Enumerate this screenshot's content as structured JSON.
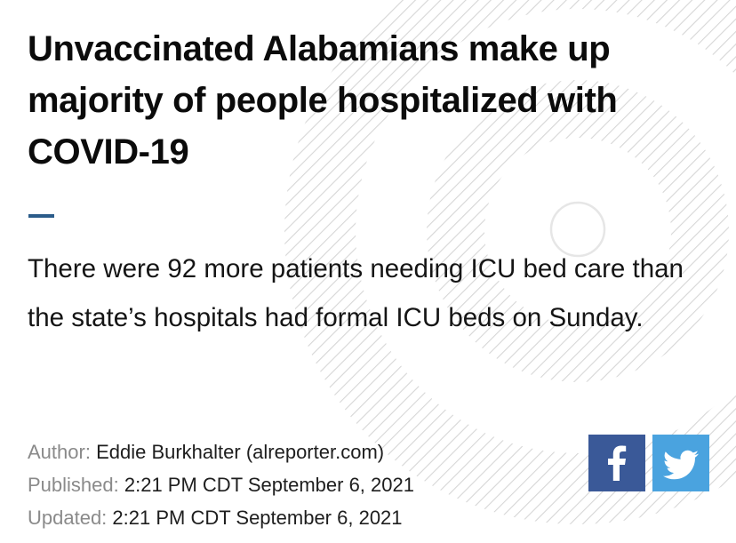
{
  "article": {
    "headline": "Unvaccinated Alabamians make up majority of people hospitalized with COVID-19",
    "dek": "There were 92 more patients needing ICU bed care than the state’s hospitals had formal ICU beds on Sunday."
  },
  "meta": {
    "author_label": "Author:",
    "author_value": "Eddie Burkhalter (alreporter.com)",
    "published_label": "Published:",
    "published_value": "2:21 PM CDT September 6, 2021",
    "updated_label": "Updated:",
    "updated_value": "2:21 PM CDT September 6, 2021"
  },
  "share": {
    "facebook": {
      "icon": "facebook-icon",
      "color": "#3a5998"
    },
    "twitter": {
      "icon": "twitter-icon",
      "color": "#4aa3df"
    }
  },
  "colors": {
    "accent": "#2b5c8a",
    "text": "#0b0b0b",
    "label": "#8a8a8a",
    "background_pattern": "#d9d9d9"
  }
}
